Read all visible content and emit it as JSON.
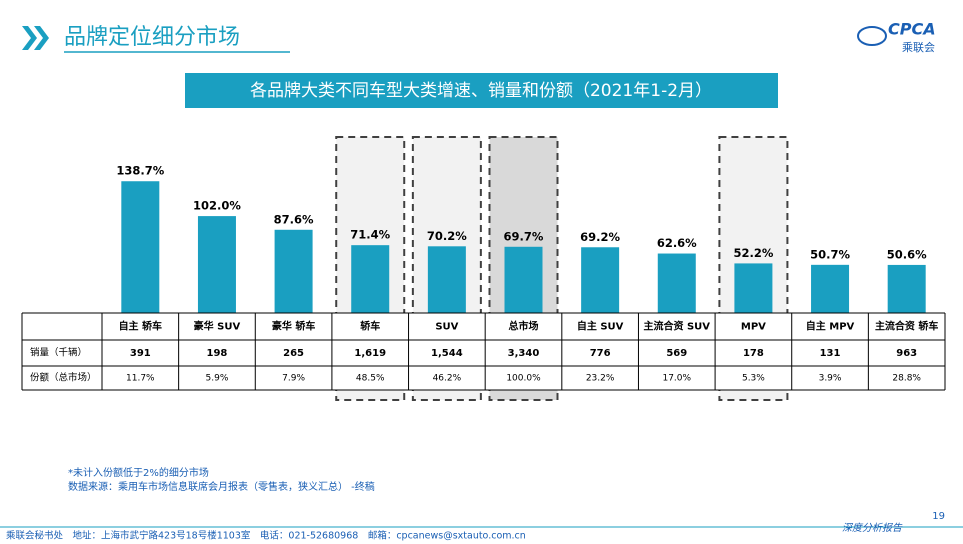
{
  "header": {
    "title": "品牌定位细分市场",
    "logo": "CPCA",
    "logo_sub": "乘联会"
  },
  "chart_data": {
    "type": "bar",
    "title": "各品牌大类不同车型大类增速、销量和份额（2021年1-2月）",
    "categories": [
      "自主 轿车",
      "豪华 SUV",
      "豪华 轿车",
      "轿车",
      "SUV",
      "总市场",
      "自主 SUV",
      "主流合资 SUV",
      "MPV",
      "自主 MPV",
      "主流合资 轿车"
    ],
    "values": [
      138.7,
      102.0,
      87.6,
      71.4,
      70.2,
      69.7,
      69.2,
      62.6,
      52.2,
      50.7,
      50.6
    ],
    "value_labels": [
      "138.7%",
      "102.0%",
      "87.6%",
      "71.4%",
      "70.2%",
      "69.7%",
      "69.2%",
      "62.6%",
      "52.2%",
      "50.7%",
      "50.6%"
    ],
    "color": "#1a9fc1"
  },
  "table": {
    "row_labels": [
      "销量（千辆）",
      "份额（总市场）"
    ],
    "rows": [
      [
        "391",
        "198",
        "265",
        "1,619",
        "1,544",
        "3,340",
        "776",
        "569",
        "178",
        "131",
        "963"
      ],
      [
        "11.7%",
        "5.9%",
        "7.9%",
        "48.5%",
        "46.2%",
        "100.0%",
        "23.2%",
        "17.0%",
        "5.3%",
        "3.9%",
        "28.8%"
      ]
    ]
  },
  "notes": [
    "*未计入份额低于2%的细分市场",
    "数据来源：乘用车市场信息联席会月报表（零售表，狭义汇总） -终稿"
  ],
  "footer": {
    "contact": "乘联会秘书处　地址：上海市武宁路423号18号楼1103室　电话：021-52680968　邮箱：cpcanews@sxtauto.com.cn",
    "tag": "深度分析报告",
    "page": "19"
  }
}
